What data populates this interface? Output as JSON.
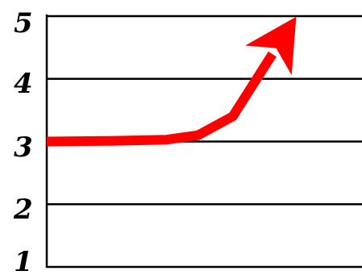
{
  "chart_data": {
    "type": "line",
    "y_ticks": [
      "1",
      "2",
      "3",
      "4",
      "5"
    ],
    "ylim": [
      1,
      5
    ],
    "xlim": [
      0,
      1
    ],
    "grid": true,
    "series": [
      {
        "points": [
          {
            "x": 0.0,
            "y": 3.0
          },
          {
            "x": 0.2,
            "y": 3.01
          },
          {
            "x": 0.38,
            "y": 3.03
          },
          {
            "x": 0.48,
            "y": 3.1
          },
          {
            "x": 0.59,
            "y": 3.4
          },
          {
            "x": 0.79,
            "y": 4.98
          }
        ]
      }
    ]
  },
  "colors": {
    "line": "#ff0000",
    "grid": "#000000",
    "background": "#ffffff"
  }
}
